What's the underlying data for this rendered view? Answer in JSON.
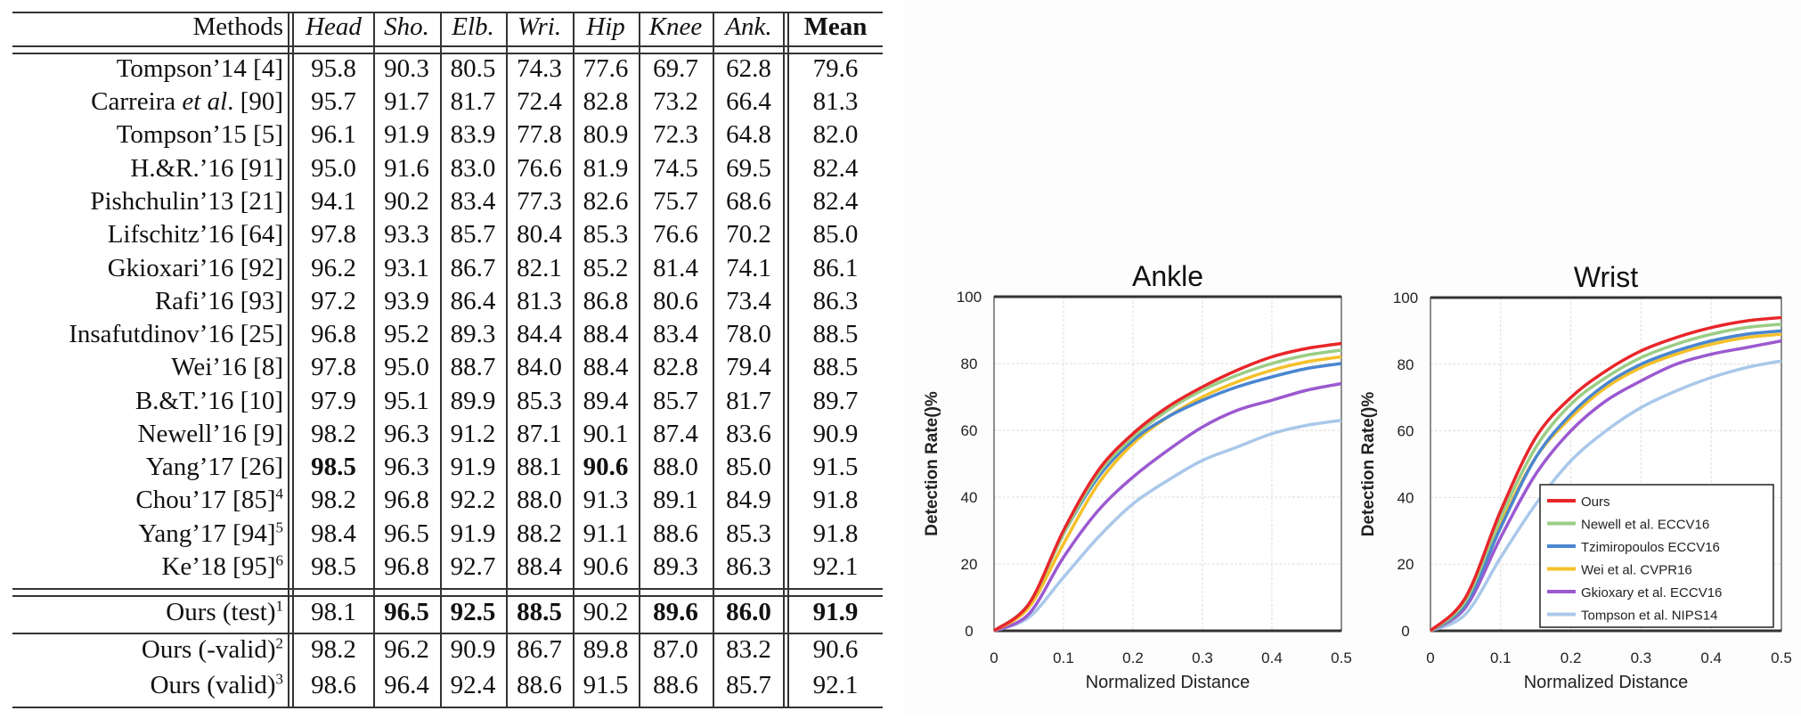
{
  "table": {
    "columns": [
      "Methods",
      "Head",
      "Sho.",
      "Elb.",
      "Wri.",
      "Hip",
      "Knee",
      "Ank.",
      "Mean"
    ],
    "rows": [
      {
        "method": [
          {
            "t": "Tompson’14 [4]"
          }
        ],
        "values": [
          "95.8",
          "90.3",
          "80.5",
          "74.3",
          "77.6",
          "69.7",
          "62.8",
          "79.6"
        ],
        "bold": []
      },
      {
        "method": [
          {
            "t": "Carreira "
          },
          {
            "t": "et al",
            "i": true
          },
          {
            "t": ". [90]"
          }
        ],
        "values": [
          "95.7",
          "91.7",
          "81.7",
          "72.4",
          "82.8",
          "73.2",
          "66.4",
          "81.3"
        ],
        "bold": []
      },
      {
        "method": [
          {
            "t": "Tompson’15 [5]"
          }
        ],
        "values": [
          "96.1",
          "91.9",
          "83.9",
          "77.8",
          "80.9",
          "72.3",
          "64.8",
          "82.0"
        ],
        "bold": []
      },
      {
        "method": [
          {
            "t": "H.&R.’16 [91]"
          }
        ],
        "values": [
          "95.0",
          "91.6",
          "83.0",
          "76.6",
          "81.9",
          "74.5",
          "69.5",
          "82.4"
        ],
        "bold": []
      },
      {
        "method": [
          {
            "t": "Pishchulin’13 [21]"
          }
        ],
        "values": [
          "94.1",
          "90.2",
          "83.4",
          "77.3",
          "82.6",
          "75.7",
          "68.6",
          "82.4"
        ],
        "bold": []
      },
      {
        "method": [
          {
            "t": "Lifschitz’16 [64]"
          }
        ],
        "values": [
          "97.8",
          "93.3",
          "85.7",
          "80.4",
          "85.3",
          "76.6",
          "70.2",
          "85.0"
        ],
        "bold": []
      },
      {
        "method": [
          {
            "t": "Gkioxari’16 [92]"
          }
        ],
        "values": [
          "96.2",
          "93.1",
          "86.7",
          "82.1",
          "85.2",
          "81.4",
          "74.1",
          "86.1"
        ],
        "bold": []
      },
      {
        "method": [
          {
            "t": "Rafi’16 [93]"
          }
        ],
        "values": [
          "97.2",
          "93.9",
          "86.4",
          "81.3",
          "86.8",
          "80.6",
          "73.4",
          "86.3"
        ],
        "bold": []
      },
      {
        "method": [
          {
            "t": "Insafutdinov’16 [25]"
          }
        ],
        "values": [
          "96.8",
          "95.2",
          "89.3",
          "84.4",
          "88.4",
          "83.4",
          "78.0",
          "88.5"
        ],
        "bold": []
      },
      {
        "method": [
          {
            "t": "Wei’16 [8]"
          }
        ],
        "values": [
          "97.8",
          "95.0",
          "88.7",
          "84.0",
          "88.4",
          "82.8",
          "79.4",
          "88.5"
        ],
        "bold": []
      },
      {
        "method": [
          {
            "t": "B.&T.’16 [10]"
          }
        ],
        "values": [
          "97.9",
          "95.1",
          "89.9",
          "85.3",
          "89.4",
          "85.7",
          "81.7",
          "89.7"
        ],
        "bold": []
      },
      {
        "method": [
          {
            "t": "Newell’16 [9]"
          }
        ],
        "values": [
          "98.2",
          "96.3",
          "91.2",
          "87.1",
          "90.1",
          "87.4",
          "83.6",
          "90.9"
        ],
        "bold": []
      },
      {
        "method": [
          {
            "t": "Yang’17 [26]"
          }
        ],
        "values": [
          "98.5",
          "96.3",
          "91.9",
          "88.1",
          "90.6",
          "88.0",
          "85.0",
          "91.5"
        ],
        "bold": [
          0,
          4
        ]
      },
      {
        "method": [
          {
            "t": "Chou’17  [85]"
          }
        ],
        "sup": "4",
        "values": [
          "98.2",
          "96.8",
          "92.2",
          "88.0",
          "91.3",
          "89.1",
          "84.9",
          "91.8"
        ],
        "bold": []
      },
      {
        "method": [
          {
            "t": "Yang’17  [94]"
          }
        ],
        "sup": "5",
        "values": [
          "98.4",
          "96.5",
          "91.9",
          "88.2",
          "91.1",
          "88.6",
          "85.3",
          "91.8"
        ],
        "bold": []
      },
      {
        "method": [
          {
            "t": "Ke’18  [95]"
          }
        ],
        "sup": "6",
        "values": [
          "98.5",
          "96.8",
          "92.7",
          "88.4",
          "90.6",
          "89.3",
          "86.3",
          "92.1"
        ],
        "bold": []
      },
      {
        "method": [
          {
            "t": "Ours (test)"
          }
        ],
        "sup": "1",
        "values": [
          "98.1",
          "96.5",
          "92.5",
          "88.5",
          "90.2",
          "89.6",
          "86.0",
          "91.9"
        ],
        "bold": [
          1,
          2,
          3,
          5,
          6,
          7
        ]
      },
      {
        "method": [
          {
            "t": "Ours (-valid)"
          }
        ],
        "sup": "2",
        "values": [
          "98.2",
          "96.2",
          "90.9",
          "86.7",
          "89.8",
          "87.0",
          "83.2",
          "90.6"
        ],
        "bold": []
      },
      {
        "method": [
          {
            "t": "Ours (valid)"
          }
        ],
        "sup": "3",
        "values": [
          "98.6",
          "96.4",
          "92.4",
          "88.6",
          "91.5",
          "88.6",
          "85.7",
          "92.1"
        ],
        "bold": []
      }
    ]
  },
  "chart_data": [
    {
      "type": "line",
      "title": "Ankle",
      "xlabel": "Normalized Distance",
      "ylabel": "Detection Rate()%",
      "xlim": [
        0,
        0.5
      ],
      "ylim": [
        0,
        100
      ],
      "xticks": [
        "0",
        "0.1",
        "0.2",
        "0.3",
        "0.4",
        "0.5"
      ],
      "yticks": [
        "0",
        "20",
        "40",
        "60",
        "80",
        "100"
      ],
      "grid": true,
      "x": [
        0,
        0.05,
        0.1,
        0.15,
        0.2,
        0.25,
        0.3,
        0.35,
        0.4,
        0.45,
        0.5
      ],
      "series": [
        {
          "name": "Ours",
          "color": "#e8262a",
          "values": [
            0,
            8,
            30,
            48,
            59,
            67,
            73,
            78,
            82,
            84.5,
            86
          ]
        },
        {
          "name": "Newell et al. ECCV16",
          "color": "#9acd85",
          "values": [
            0,
            8,
            29,
            47,
            58,
            66,
            72,
            76.5,
            80,
            82.5,
            84
          ]
        },
        {
          "name": "Tzimiropoulos ECCV16",
          "color": "#4a86d0",
          "values": [
            0,
            8,
            29,
            46,
            57,
            64,
            69,
            73,
            76,
            78.5,
            80
          ]
        },
        {
          "name": "Wei et al. CVPR16",
          "color": "#f5c02a",
          "values": [
            0,
            7,
            26,
            44,
            56,
            64,
            70,
            74.5,
            78,
            80.5,
            82
          ]
        },
        {
          "name": "Gkioxary et al. ECCV16",
          "color": "#9b59d0",
          "values": [
            0,
            5,
            22,
            36,
            46,
            54,
            61,
            66,
            69,
            72,
            74
          ]
        },
        {
          "name": "Tompson et al. NIPS14",
          "color": "#a9c8ea",
          "values": [
            0,
            4,
            16,
            28,
            38,
            45,
            51,
            55,
            59,
            61.5,
            63
          ]
        }
      ]
    },
    {
      "type": "line",
      "title": "Wrist",
      "xlabel": "Normalized Distance",
      "ylabel": "Detection Rate()%",
      "xlim": [
        0,
        0.5
      ],
      "ylim": [
        0,
        100
      ],
      "xticks": [
        "0",
        "0.1",
        "0.2",
        "0.3",
        "0.4",
        "0.5"
      ],
      "yticks": [
        "0",
        "20",
        "40",
        "60",
        "80",
        "100"
      ],
      "grid": true,
      "legend": "bottom-right",
      "x": [
        0,
        0.05,
        0.1,
        0.15,
        0.2,
        0.25,
        0.3,
        0.35,
        0.4,
        0.45,
        0.5
      ],
      "series": [
        {
          "name": "Ours",
          "color": "#e8262a",
          "values": [
            0,
            10,
            36,
            58,
            70,
            78,
            84,
            88,
            91,
            93,
            94
          ]
        },
        {
          "name": "Newell et al. ECCV16",
          "color": "#9acd85",
          "values": [
            0,
            9,
            34,
            55,
            68,
            76,
            82,
            86,
            89,
            91,
            92
          ]
        },
        {
          "name": "Tzimiropoulos ECCV16",
          "color": "#4a86d0",
          "values": [
            0,
            8,
            31,
            52,
            65,
            74,
            80,
            84,
            87,
            89,
            90
          ]
        },
        {
          "name": "Wei et al. CVPR16",
          "color": "#f5c02a",
          "values": [
            0,
            8,
            32,
            52,
            64,
            73,
            79,
            83,
            86,
            88,
            89
          ]
        },
        {
          "name": "Gkioxary et al. ECCV16",
          "color": "#9b59d0",
          "values": [
            0,
            7,
            28,
            47,
            60,
            69,
            75,
            80,
            83,
            85,
            87
          ]
        },
        {
          "name": "Tompson et al. NIPS14",
          "color": "#a9c8ea",
          "values": [
            0,
            5,
            22,
            38,
            51,
            60,
            67,
            72,
            76,
            79,
            81
          ]
        }
      ]
    }
  ]
}
